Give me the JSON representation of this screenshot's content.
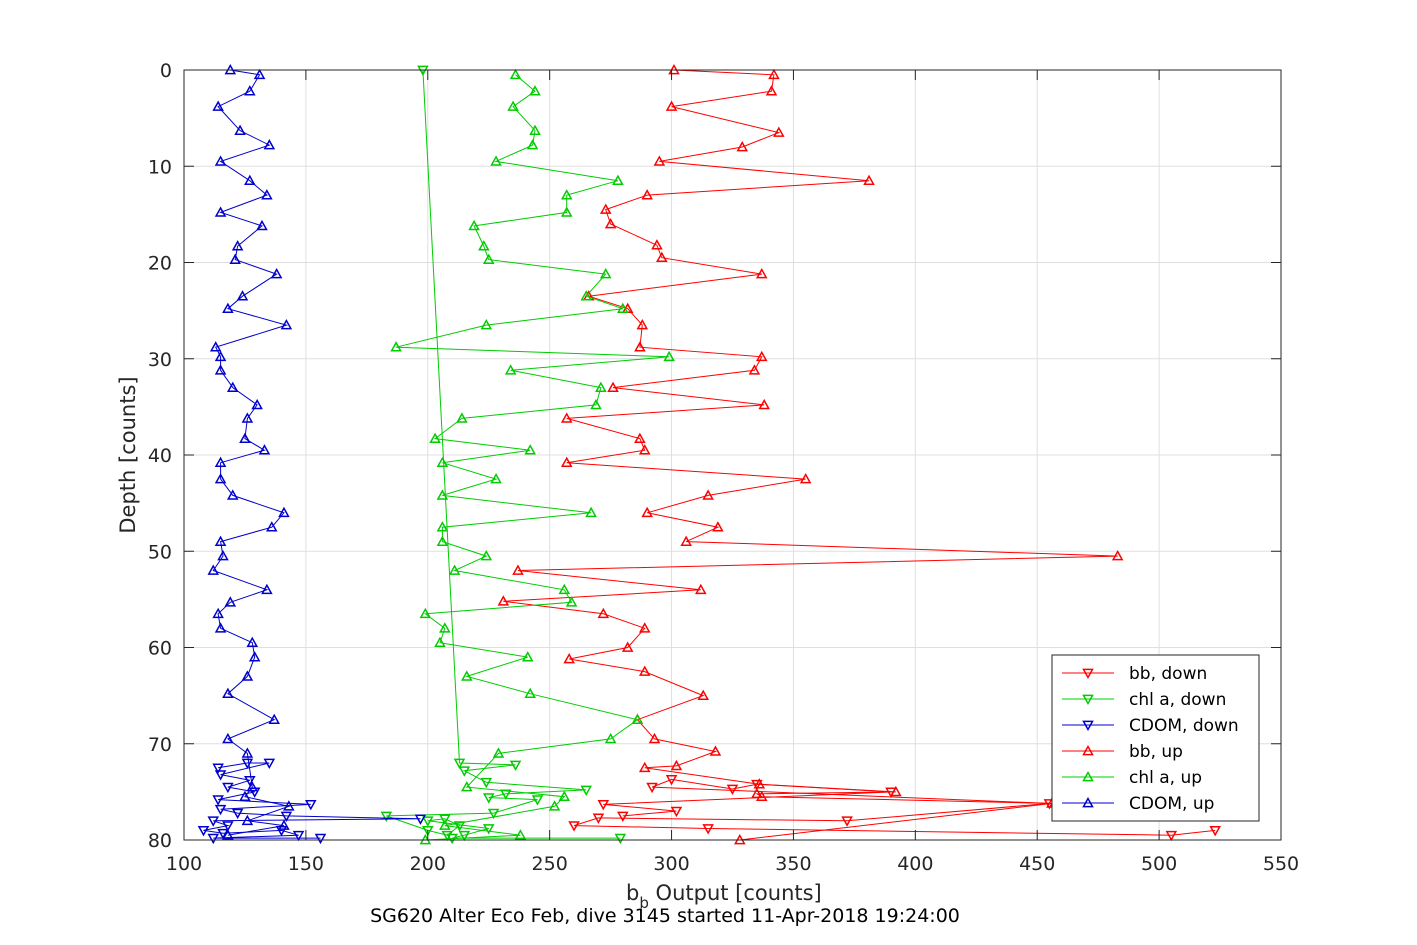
{
  "chart_data": {
    "type": "line",
    "xlabel": "b",
    "xlabel_sub": "b",
    "xlabel_rest": " Output [counts]",
    "ylabel": "Depth [counts]",
    "caption": "SG620 Alter Eco Feb, dive 3145 started 11-Apr-2018 19:24:00",
    "xlim": [
      100,
      550
    ],
    "ylim": [
      0,
      80
    ],
    "y_reversed": true,
    "grid": true,
    "xticks": [
      "100",
      "150",
      "200",
      "250",
      "300",
      "350",
      "400",
      "450",
      "500",
      "550"
    ],
    "yticks": [
      "0",
      "10",
      "20",
      "30",
      "40",
      "50",
      "60",
      "70",
      "80"
    ],
    "legend_position": "bottom-right",
    "series": [
      {
        "name": "bb, down",
        "color": "#ff0000",
        "marker": "down",
        "points": [
          [
            280,
            77.5
          ],
          [
            302,
            77
          ],
          [
            272,
            76.3
          ],
          [
            390,
            75
          ],
          [
            335,
            74.2
          ],
          [
            325,
            74.7
          ],
          [
            300,
            73.7
          ],
          [
            292,
            74.5
          ],
          [
            455,
            76.2
          ],
          [
            372,
            78
          ],
          [
            270,
            77.7
          ],
          [
            260,
            78.5
          ],
          [
            315,
            78.8
          ],
          [
            505,
            79.5
          ],
          [
            523,
            79
          ]
        ]
      },
      {
        "name": "chl a, down",
        "color": "#00cc00",
        "marker": "down",
        "points": [
          [
            198,
            0
          ],
          [
            213,
            72
          ],
          [
            236,
            72.2
          ],
          [
            215,
            72.8
          ],
          [
            224,
            74
          ],
          [
            265,
            74.8
          ],
          [
            232,
            75.2
          ],
          [
            225,
            75.6
          ],
          [
            245,
            75.8
          ],
          [
            227,
            77.2
          ],
          [
            183,
            77.5
          ],
          [
            200,
            79
          ],
          [
            208,
            79.5
          ],
          [
            213,
            78.5
          ],
          [
            207,
            77.8
          ],
          [
            200,
            78
          ],
          [
            225,
            78.8
          ],
          [
            215,
            79.5
          ],
          [
            210,
            79.8
          ],
          [
            279,
            79.8
          ]
        ]
      },
      {
        "name": "CDOM, down",
        "color": "#0000cc",
        "marker": "down",
        "points": [
          [
            114,
            72.5
          ],
          [
            126,
            72
          ],
          [
            135,
            72
          ],
          [
            115,
            73.2
          ],
          [
            127,
            73.8
          ],
          [
            118,
            74.5
          ],
          [
            129,
            75
          ],
          [
            114,
            75.8
          ],
          [
            152,
            76.3
          ],
          [
            115,
            76.8
          ],
          [
            122,
            77.2
          ],
          [
            142,
            77.5
          ],
          [
            197,
            77.8
          ],
          [
            112,
            78
          ],
          [
            118,
            78.5
          ],
          [
            108,
            79
          ],
          [
            116,
            79.3
          ],
          [
            140,
            79
          ],
          [
            147,
            79.5
          ],
          [
            112,
            79.8
          ],
          [
            156,
            79.8
          ]
        ]
      },
      {
        "name": "bb, up",
        "color": "#ff0000",
        "marker": "up",
        "points": [
          [
            301,
            0
          ],
          [
            342,
            0.5
          ],
          [
            341,
            2.2
          ],
          [
            300,
            3.8
          ],
          [
            344,
            6.5
          ],
          [
            329,
            8
          ],
          [
            295,
            9.5
          ],
          [
            381,
            11.5
          ],
          [
            290,
            13
          ],
          [
            273,
            14.5
          ],
          [
            275,
            16
          ],
          [
            294,
            18.2
          ],
          [
            296,
            19.5
          ],
          [
            337,
            21.2
          ],
          [
            266,
            23.5
          ],
          [
            282,
            24.8
          ],
          [
            288,
            26.5
          ],
          [
            287,
            28.8
          ],
          [
            337,
            29.8
          ],
          [
            334,
            31.2
          ],
          [
            276,
            33
          ],
          [
            338,
            34.8
          ],
          [
            257,
            36.2
          ],
          [
            287,
            38.3
          ],
          [
            289,
            39.5
          ],
          [
            257,
            40.8
          ],
          [
            355,
            42.5
          ],
          [
            315,
            44.2
          ],
          [
            290,
            46
          ],
          [
            319,
            47.5
          ],
          [
            306,
            49
          ],
          [
            483,
            50.5
          ],
          [
            237,
            52
          ],
          [
            312,
            54
          ],
          [
            231,
            55.2
          ],
          [
            272,
            56.5
          ],
          [
            289,
            58
          ],
          [
            282,
            60
          ],
          [
            258,
            61.2
          ],
          [
            289,
            62.5
          ],
          [
            313,
            65
          ],
          [
            286,
            67.5
          ],
          [
            293,
            69.5
          ],
          [
            318,
            70.8
          ],
          [
            302,
            72.3
          ],
          [
            289,
            72.5
          ],
          [
            336,
            74.2
          ],
          [
            392,
            75
          ],
          [
            335,
            75.2
          ],
          [
            337,
            75.5
          ],
          [
            456,
            76.2
          ],
          [
            328,
            80
          ]
        ]
      },
      {
        "name": "chl a, up",
        "color": "#00cc00",
        "marker": "up",
        "points": [
          [
            236,
            0.5
          ],
          [
            244,
            2.2
          ],
          [
            235,
            3.8
          ],
          [
            244,
            6.3
          ],
          [
            243,
            7.8
          ],
          [
            228,
            9.5
          ],
          [
            278,
            11.5
          ],
          [
            257,
            13
          ],
          [
            257,
            14.8
          ],
          [
            219,
            16.2
          ],
          [
            223,
            18.3
          ],
          [
            225,
            19.7
          ],
          [
            273,
            21.2
          ],
          [
            265,
            23.5
          ],
          [
            280,
            24.8
          ],
          [
            224,
            26.5
          ],
          [
            187,
            28.8
          ],
          [
            299,
            29.8
          ],
          [
            234,
            31.2
          ],
          [
            271,
            33
          ],
          [
            269,
            34.8
          ],
          [
            214,
            36.2
          ],
          [
            203,
            38.3
          ],
          [
            242,
            39.5
          ],
          [
            206,
            40.8
          ],
          [
            228,
            42.5
          ],
          [
            206,
            44.2
          ],
          [
            267,
            46
          ],
          [
            206,
            47.5
          ],
          [
            206,
            49
          ],
          [
            224,
            50.5
          ],
          [
            211,
            52
          ],
          [
            256,
            54
          ],
          [
            259,
            55.3
          ],
          [
            199,
            56.5
          ],
          [
            207,
            58
          ],
          [
            205,
            59.5
          ],
          [
            241,
            61
          ],
          [
            216,
            63
          ],
          [
            242,
            64.8
          ],
          [
            286,
            67.5
          ],
          [
            275,
            69.5
          ],
          [
            229,
            71
          ],
          [
            216,
            74.5
          ],
          [
            256,
            75.5
          ],
          [
            252,
            76.5
          ],
          [
            207,
            78.5
          ],
          [
            238,
            79.5
          ],
          [
            199,
            80
          ]
        ]
      },
      {
        "name": "CDOM, up",
        "color": "#0000cc",
        "marker": "up",
        "points": [
          [
            119,
            0
          ],
          [
            131,
            0.5
          ],
          [
            127,
            2.2
          ],
          [
            114,
            3.8
          ],
          [
            123,
            6.3
          ],
          [
            135,
            7.8
          ],
          [
            115,
            9.5
          ],
          [
            127,
            11.5
          ],
          [
            134,
            13
          ],
          [
            115,
            14.8
          ],
          [
            132,
            16.2
          ],
          [
            122,
            18.3
          ],
          [
            121,
            19.7
          ],
          [
            138,
            21.2
          ],
          [
            124,
            23.5
          ],
          [
            118,
            24.8
          ],
          [
            142,
            26.5
          ],
          [
            113,
            28.8
          ],
          [
            115,
            29.8
          ],
          [
            115,
            31.2
          ],
          [
            120,
            33
          ],
          [
            130,
            34.8
          ],
          [
            126,
            36.2
          ],
          [
            125,
            38.3
          ],
          [
            133,
            39.5
          ],
          [
            115,
            40.8
          ],
          [
            115,
            42.5
          ],
          [
            120,
            44.2
          ],
          [
            141,
            46
          ],
          [
            136,
            47.5
          ],
          [
            115,
            49
          ],
          [
            116,
            50.5
          ],
          [
            112,
            52
          ],
          [
            134,
            54
          ],
          [
            119,
            55.3
          ],
          [
            114,
            56.5
          ],
          [
            115,
            58
          ],
          [
            128,
            59.5
          ],
          [
            129,
            61
          ],
          [
            126,
            63
          ],
          [
            118,
            64.8
          ],
          [
            137,
            67.5
          ],
          [
            118,
            69.5
          ],
          [
            126,
            71
          ],
          [
            128,
            74.5
          ],
          [
            125,
            75.5
          ],
          [
            143,
            76.5
          ],
          [
            126,
            78
          ],
          [
            141,
            78.5
          ],
          [
            118,
            79.5
          ]
        ]
      }
    ]
  }
}
